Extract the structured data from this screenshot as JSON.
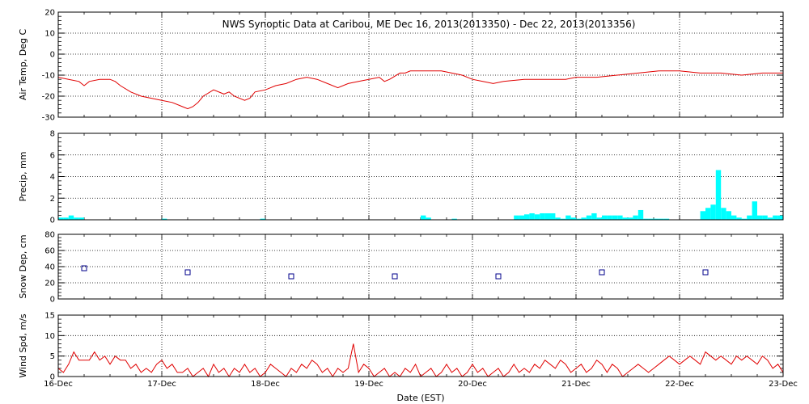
{
  "chart_data": {
    "title": "NWS Synoptic Data at Caribou, ME   Dec 16, 2013(2013350) - Dec 22, 2013(2013356)",
    "xlabel": "Date (EST)",
    "x_ticks": [
      "16-Dec",
      "17-Dec",
      "18-Dec",
      "19-Dec",
      "20-Dec",
      "21-Dec",
      "22-Dec",
      "23-Dec"
    ],
    "xlim": [
      0,
      7
    ],
    "grid": true,
    "colors": {
      "temp": "#e00000",
      "precip": "#00ffff",
      "snow": "#00008b",
      "wind": "#e00000"
    },
    "panels": [
      {
        "id": "temp",
        "type": "line",
        "ylabel": "Air Temp, Deg C",
        "ylim": [
          -30,
          20
        ],
        "yticks": [
          -30,
          -20,
          -10,
          0,
          10,
          20
        ],
        "x": [
          0,
          0.1,
          0.2,
          0.25,
          0.3,
          0.4,
          0.5,
          0.55,
          0.6,
          0.7,
          0.8,
          0.9,
          1.0,
          1.1,
          1.2,
          1.25,
          1.3,
          1.35,
          1.4,
          1.5,
          1.6,
          1.65,
          1.7,
          1.8,
          1.85,
          1.9,
          2.0,
          2.1,
          2.2,
          2.3,
          2.4,
          2.5,
          2.6,
          2.7,
          2.8,
          2.9,
          3.0,
          3.1,
          3.15,
          3.2,
          3.3,
          3.35,
          3.4,
          3.5,
          3.6,
          3.7,
          3.8,
          3.9,
          4.0,
          4.1,
          4.2,
          4.3,
          4.5,
          4.7,
          4.9,
          5.0,
          5.2,
          5.4,
          5.6,
          5.8,
          6.0,
          6.2,
          6.4,
          6.6,
          6.8,
          7.0
        ],
        "y": [
          -11,
          -12,
          -13,
          -15,
          -13,
          -12,
          -12,
          -13,
          -15,
          -18,
          -20,
          -21,
          -22,
          -23,
          -25,
          -26,
          -25,
          -23,
          -20,
          -17,
          -19,
          -18,
          -20,
          -22,
          -21,
          -18,
          -17,
          -15,
          -14,
          -12,
          -11,
          -12,
          -14,
          -16,
          -14,
          -13,
          -12,
          -11,
          -13,
          -12,
          -9,
          -9,
          -8,
          -8,
          -8,
          -8,
          -9,
          -10,
          -12,
          -13,
          -14,
          -13,
          -12,
          -12,
          -12,
          -11,
          -11,
          -10,
          -9,
          -8,
          -8,
          -9,
          -9,
          -10,
          -9,
          -9
        ]
      },
      {
        "id": "precip",
        "type": "bar",
        "ylabel": "Precip, mm",
        "ylim": [
          0,
          8
        ],
        "yticks": [
          0,
          2,
          4,
          6,
          8
        ],
        "bar_width": 0.05,
        "x": [
          0.025,
          0.075,
          0.125,
          0.175,
          0.225,
          1.025,
          1.975,
          3.525,
          3.575,
          3.825,
          4.425,
          4.475,
          4.525,
          4.575,
          4.625,
          4.675,
          4.725,
          4.775,
          4.825,
          4.875,
          4.925,
          4.975,
          5.025,
          5.075,
          5.125,
          5.175,
          5.225,
          5.275,
          5.325,
          5.375,
          5.425,
          5.475,
          5.525,
          5.575,
          5.625,
          5.675,
          5.725,
          5.775,
          5.825,
          5.875,
          6.225,
          6.275,
          6.325,
          6.375,
          6.425,
          6.475,
          6.525,
          6.575,
          6.625,
          6.675,
          6.725,
          6.775,
          6.825,
          6.875,
          6.925,
          6.975
        ],
        "values": [
          0.2,
          0.2,
          0.4,
          0.2,
          0.2,
          0.1,
          0.1,
          0.4,
          0.2,
          0.1,
          0.4,
          0.4,
          0.5,
          0.6,
          0.5,
          0.6,
          0.6,
          0.6,
          0.2,
          0.1,
          0.4,
          0.2,
          0.1,
          0.2,
          0.4,
          0.6,
          0.2,
          0.4,
          0.4,
          0.4,
          0.4,
          0.2,
          0.2,
          0.4,
          0.9,
          0.1,
          0.1,
          0.1,
          0.1,
          0.1,
          0.8,
          1.1,
          1.4,
          4.6,
          1.1,
          0.8,
          0.4,
          0.2,
          0.1,
          0.4,
          1.7,
          0.4,
          0.4,
          0.2,
          0.4,
          0.4
        ]
      },
      {
        "id": "snow",
        "type": "scatter",
        "ylabel": "Snow Dep, cm",
        "ylim": [
          0,
          80
        ],
        "yticks": [
          0,
          20,
          40,
          60,
          80
        ],
        "x": [
          0.25,
          1.25,
          2.25,
          3.25,
          4.25,
          5.25,
          6.25
        ],
        "y": [
          38,
          33,
          28,
          28,
          28,
          33,
          33
        ]
      },
      {
        "id": "wind",
        "type": "line",
        "ylabel": "Wind Spd, m/s",
        "ylim": [
          0,
          15
        ],
        "yticks": [
          0,
          5,
          10,
          15
        ],
        "x": [
          0,
          0.05,
          0.1,
          0.15,
          0.2,
          0.25,
          0.3,
          0.35,
          0.4,
          0.45,
          0.5,
          0.55,
          0.6,
          0.65,
          0.7,
          0.75,
          0.8,
          0.85,
          0.9,
          0.95,
          1.0,
          1.05,
          1.1,
          1.15,
          1.2,
          1.25,
          1.3,
          1.35,
          1.4,
          1.45,
          1.5,
          1.55,
          1.6,
          1.65,
          1.7,
          1.75,
          1.8,
          1.85,
          1.9,
          1.95,
          2.0,
          2.05,
          2.1,
          2.15,
          2.2,
          2.25,
          2.3,
          2.35,
          2.4,
          2.45,
          2.5,
          2.55,
          2.6,
          2.65,
          2.7,
          2.75,
          2.8,
          2.85,
          2.9,
          2.95,
          3.0,
          3.05,
          3.1,
          3.15,
          3.2,
          3.25,
          3.3,
          3.35,
          3.4,
          3.45,
          3.5,
          3.55,
          3.6,
          3.65,
          3.7,
          3.75,
          3.8,
          3.85,
          3.9,
          3.95,
          4.0,
          4.05,
          4.1,
          4.15,
          4.2,
          4.25,
          4.3,
          4.35,
          4.4,
          4.45,
          4.5,
          4.55,
          4.6,
          4.65,
          4.7,
          4.75,
          4.8,
          4.85,
          4.9,
          4.95,
          5.0,
          5.05,
          5.1,
          5.15,
          5.2,
          5.25,
          5.3,
          5.35,
          5.4,
          5.45,
          5.5,
          5.55,
          5.6,
          5.65,
          5.7,
          5.75,
          5.8,
          5.85,
          5.9,
          5.95,
          6.0,
          6.05,
          6.1,
          6.15,
          6.2,
          6.25,
          6.3,
          6.35,
          6.4,
          6.45,
          6.5,
          6.55,
          6.6,
          6.65,
          6.7,
          6.75,
          6.8,
          6.85,
          6.9,
          6.95,
          7.0
        ],
        "y": [
          2,
          1,
          3,
          6,
          4,
          4,
          4,
          6,
          4,
          5,
          3,
          5,
          4,
          4,
          2,
          3,
          1,
          2,
          1,
          3,
          4,
          2,
          3,
          1,
          1,
          2,
          0,
          1,
          2,
          0,
          3,
          1,
          2,
          0,
          2,
          1,
          3,
          1,
          2,
          0,
          1,
          3,
          2,
          1,
          0,
          2,
          1,
          3,
          2,
          4,
          3,
          1,
          2,
          0,
          2,
          1,
          2,
          8,
          1,
          3,
          2,
          0,
          1,
          2,
          0,
          1,
          0,
          2,
          1,
          3,
          0,
          1,
          2,
          0,
          1,
          3,
          1,
          2,
          0,
          1,
          3,
          1,
          2,
          0,
          1,
          2,
          0,
          1,
          3,
          1,
          2,
          1,
          3,
          2,
          4,
          3,
          2,
          4,
          3,
          1,
          2,
          3,
          1,
          2,
          4,
          3,
          1,
          3,
          2,
          0,
          1,
          2,
          3,
          2,
          1,
          2,
          3,
          4,
          5,
          4,
          3,
          4,
          5,
          4,
          3,
          6,
          5,
          4,
          5,
          4,
          3,
          5,
          4,
          5,
          4,
          3,
          5,
          4,
          2,
          3,
          1
        ]
      }
    ]
  }
}
